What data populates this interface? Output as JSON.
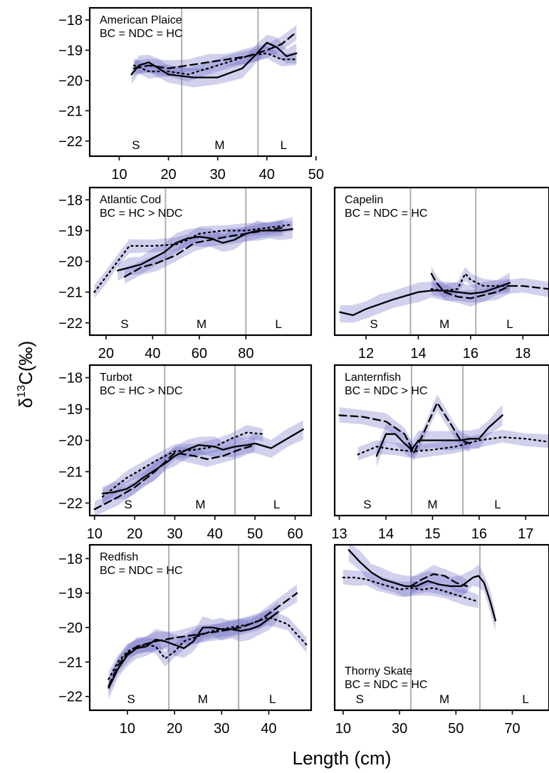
{
  "figure": {
    "ylabel": "δ13C(‰)",
    "ylabel_main": "δ",
    "ylabel_sup": "13",
    "ylabel_rest": "C(‰)",
    "xlabel": "Length (cm)"
  },
  "colors": {
    "band": "#5b5bbf",
    "line": "#000000",
    "divider": "#b0b0b0"
  },
  "chart_data": [
    {
      "type": "line",
      "title": "American Plaice",
      "subtitle": "BC = NDC = HC",
      "xlim": [
        4,
        49
      ],
      "ylim": [
        -22.5,
        -17.6
      ],
      "xticks": [
        10,
        20,
        30,
        40,
        50
      ],
      "yticks": [
        -18,
        -19,
        -20,
        -21,
        -22
      ],
      "dividers": [
        22.7,
        38.2
      ],
      "size_classes": [
        {
          "label": "S",
          "x": 13.4
        },
        {
          "label": "M",
          "x": 30.4
        },
        {
          "label": "L",
          "x": 43.4
        }
      ],
      "series": [
        {
          "style": "solid",
          "x": [
            12.5,
            14,
            16,
            18,
            20,
            25,
            30,
            35,
            38,
            40,
            42,
            44,
            46
          ],
          "y": [
            -19.8,
            -19.5,
            -19.4,
            -19.6,
            -19.8,
            -19.9,
            -19.9,
            -19.6,
            -19.1,
            -18.75,
            -18.9,
            -19.2,
            -19.1
          ]
        },
        {
          "style": "dashed",
          "x": [
            13,
            16,
            20,
            24,
            28,
            32,
            36,
            40,
            43,
            46
          ],
          "y": [
            -19.6,
            -19.5,
            -19.6,
            -19.5,
            -19.4,
            -19.3,
            -19.2,
            -19.0,
            -18.8,
            -18.4
          ]
        },
        {
          "style": "dotted",
          "x": [
            13,
            16,
            20,
            24,
            28,
            32,
            36,
            40,
            43,
            46
          ],
          "y": [
            -19.5,
            -19.7,
            -19.7,
            -19.8,
            -19.6,
            -19.4,
            -19.2,
            -19.1,
            -19.3,
            -19.3
          ]
        }
      ]
    },
    {
      "type": "line",
      "title": "Atlantic Cod",
      "subtitle": "BC = HC > NDC",
      "xlim": [
        13,
        108
      ],
      "ylim": [
        -22.4,
        -17.6
      ],
      "xticks": [
        20,
        40,
        60,
        80
      ],
      "yticks": [
        -18,
        -19,
        -20,
        -21,
        -22
      ],
      "dividers": [
        45.5,
        80
      ],
      "size_classes": [
        {
          "label": "S",
          "x": 28
        },
        {
          "label": "M",
          "x": 61
        },
        {
          "label": "L",
          "x": 94
        }
      ],
      "series": [
        {
          "style": "solid",
          "x": [
            25,
            30,
            35,
            40,
            45,
            50,
            55,
            60,
            65,
            70,
            75,
            80,
            85,
            90,
            95,
            100
          ],
          "y": [
            -20.3,
            -20.2,
            -20.1,
            -19.9,
            -19.7,
            -19.4,
            -19.25,
            -19.2,
            -19.25,
            -19.4,
            -19.3,
            -19.1,
            -19.0,
            -19.0,
            -19.0,
            -18.95
          ]
        },
        {
          "style": "dashed",
          "x": [
            28,
            35,
            42,
            50,
            58,
            65,
            72,
            80,
            88,
            96
          ],
          "y": [
            -20.5,
            -20.2,
            -20.05,
            -19.8,
            -19.4,
            -19.3,
            -19.2,
            -19.1,
            -19.0,
            -18.9
          ]
        },
        {
          "style": "dotted",
          "x": [
            15,
            20,
            25,
            30,
            40,
            50,
            55,
            60,
            70,
            80,
            90,
            100
          ],
          "y": [
            -21.0,
            -20.5,
            -20.0,
            -19.5,
            -19.5,
            -19.45,
            -19.3,
            -19.1,
            -19.0,
            -19.0,
            -18.9,
            -18.8
          ]
        }
      ]
    },
    {
      "type": "line",
      "title": "Capelin",
      "subtitle": "BC = NDC = HC",
      "xlim": [
        10.8,
        19
      ],
      "ylim": [
        -22.4,
        -17.6
      ],
      "xticks": [
        12,
        14,
        16,
        18
      ],
      "yticks": [],
      "dividers": [
        13.7,
        16.2
      ],
      "size_classes": [
        {
          "label": "S",
          "x": 12.3
        },
        {
          "label": "M",
          "x": 15.0
        },
        {
          "label": "L",
          "x": 17.5
        }
      ],
      "series": [
        {
          "style": "solid",
          "x": [
            11,
            11.5,
            12,
            12.5,
            13,
            14,
            14.5,
            15,
            15.5,
            16,
            16.5,
            17.0,
            17.5
          ],
          "y": [
            -21.65,
            -21.75,
            -21.55,
            -21.4,
            -21.25,
            -21.0,
            -20.95,
            -20.95,
            -21.0,
            -21.05,
            -21.0,
            -20.85,
            -20.7
          ]
        },
        {
          "style": "dashed",
          "x": [
            14.5,
            14.7,
            15,
            15.5,
            16,
            16.5,
            17,
            17.5,
            18,
            19
          ],
          "y": [
            -20.4,
            -20.7,
            -21.0,
            -21.15,
            -21.2,
            -21.1,
            -21.0,
            -20.8,
            -20.8,
            -20.9
          ]
        },
        {
          "style": "dotted",
          "x": [
            14.5,
            15,
            15.5,
            15.8,
            16,
            16.5,
            17,
            17.5
          ],
          "y": [
            -20.9,
            -20.95,
            -20.9,
            -20.4,
            -20.6,
            -20.8,
            -20.8,
            -20.8
          ]
        }
      ]
    },
    {
      "type": "line",
      "title": "Turbot",
      "subtitle": "BC = HC > NDC",
      "xlim": [
        8.8,
        64
      ],
      "ylim": [
        -22.4,
        -17.6
      ],
      "xticks": [
        10,
        20,
        30,
        40,
        50,
        60
      ],
      "yticks": [
        -18,
        -19,
        -20,
        -21,
        -22
      ],
      "dividers": [
        27.5,
        45
      ],
      "size_classes": [
        {
          "label": "S",
          "x": 18.4
        },
        {
          "label": "M",
          "x": 36.4
        },
        {
          "label": "L",
          "x": 55.4
        }
      ],
      "series": [
        {
          "style": "solid",
          "x": [
            12,
            15,
            18,
            20,
            22,
            25,
            28,
            30,
            33,
            36,
            40,
            42,
            45,
            48,
            50,
            54,
            58,
            62
          ],
          "y": [
            -21.7,
            -21.65,
            -21.55,
            -21.4,
            -21.2,
            -20.95,
            -20.7,
            -20.5,
            -20.3,
            -20.15,
            -20.2,
            -20.3,
            -20.2,
            -20.15,
            -20.1,
            -20.25,
            -19.95,
            -19.65
          ]
        },
        {
          "style": "dashed",
          "x": [
            10,
            13,
            16,
            20,
            25,
            30,
            35,
            38,
            42,
            46,
            50
          ],
          "y": [
            -22.2,
            -22.0,
            -21.8,
            -21.5,
            -21.0,
            -20.4,
            -20.5,
            -20.6,
            -20.5,
            -20.3,
            -20.15
          ]
        },
        {
          "style": "dotted",
          "x": [
            12,
            15,
            18,
            22,
            26,
            30,
            35,
            40,
            44,
            48,
            52
          ],
          "y": [
            -21.8,
            -21.5,
            -21.2,
            -20.9,
            -20.6,
            -20.35,
            -20.3,
            -20.2,
            -19.95,
            -19.75,
            -19.8
          ]
        }
      ]
    },
    {
      "type": "line",
      "title": "Lanternfish",
      "subtitle": "BC = NDC > HC",
      "xlim": [
        12.9,
        17.5
      ],
      "ylim": [
        -22.4,
        -17.6
      ],
      "xticks": [
        13,
        14,
        15,
        16,
        17
      ],
      "yticks": [],
      "dividers": [
        14.55,
        15.65
      ],
      "size_classes": [
        {
          "label": "S",
          "x": 13.6
        },
        {
          "label": "M",
          "x": 15.0
        },
        {
          "label": "L",
          "x": 16.4
        }
      ],
      "series": [
        {
          "style": "solid",
          "x": [
            13.8,
            14.0,
            14.2,
            14.4,
            14.55,
            14.7,
            15.0,
            15.3,
            15.6,
            15.8,
            16.0,
            16.2,
            16.5
          ],
          "y": [
            -20.5,
            -19.8,
            -19.8,
            -20.1,
            -20.3,
            -20.0,
            -20.0,
            -20.0,
            -20.0,
            -19.95,
            -19.95,
            -19.6,
            -19.2
          ]
        },
        {
          "style": "dashed",
          "x": [
            13.0,
            13.5,
            14.0,
            14.4,
            14.6,
            14.8,
            15.1,
            15.4,
            15.6,
            15.8
          ],
          "y": [
            -19.2,
            -19.25,
            -19.4,
            -19.8,
            -20.4,
            -19.8,
            -18.8,
            -19.5,
            -20.0,
            -20.1
          ]
        },
        {
          "style": "dotted",
          "x": [
            13.4,
            13.8,
            14.2,
            14.6,
            15.0,
            15.5,
            16.0,
            16.5,
            17.0,
            17.5
          ],
          "y": [
            -20.45,
            -20.2,
            -20.3,
            -20.35,
            -20.3,
            -20.2,
            -20.0,
            -19.9,
            -19.95,
            -20.05
          ]
        }
      ]
    },
    {
      "type": "line",
      "title": "Redfish",
      "subtitle": "BC = NDC = HC",
      "xlim": [
        2,
        49
      ],
      "ylim": [
        -22.4,
        -17.6
      ],
      "xticks": [
        10,
        20,
        30,
        40
      ],
      "yticks": [
        -18,
        -19,
        -20,
        -21,
        -22
      ],
      "dividers": [
        18.8,
        33.6
      ],
      "size_classes": [
        {
          "label": "S",
          "x": 10.8
        },
        {
          "label": "M",
          "x": 26.0
        },
        {
          "label": "L",
          "x": 40.8
        }
      ],
      "series": [
        {
          "style": "solid",
          "x": [
            6,
            8,
            10,
            12,
            14,
            16,
            18,
            20,
            22,
            24,
            26,
            28,
            30,
            32,
            34,
            36,
            38,
            40,
            42
          ],
          "y": [
            -21.75,
            -21.2,
            -20.8,
            -20.6,
            -20.55,
            -20.35,
            -20.4,
            -20.5,
            -20.6,
            -20.4,
            -20.0,
            -20.0,
            -20.05,
            -20.05,
            -20.1,
            -20.05,
            -19.95,
            -19.75,
            -19.55
          ]
        },
        {
          "style": "dashed",
          "x": [
            6,
            8,
            10,
            12,
            16,
            20,
            25,
            30,
            34,
            38,
            42,
            46
          ],
          "y": [
            -21.7,
            -21.1,
            -20.75,
            -20.55,
            -20.4,
            -20.3,
            -20.2,
            -20.1,
            -20.0,
            -19.8,
            -19.4,
            -19.0
          ]
        },
        {
          "style": "dotted",
          "x": [
            6,
            8,
            10,
            12,
            14,
            16,
            18,
            20,
            22,
            24,
            28,
            32,
            36,
            40,
            44,
            48
          ],
          "y": [
            -21.5,
            -21.0,
            -20.7,
            -20.55,
            -20.5,
            -20.55,
            -20.9,
            -20.7,
            -20.4,
            -20.3,
            -20.1,
            -20.0,
            -19.9,
            -19.7,
            -19.9,
            -20.5
          ]
        }
      ]
    },
    {
      "type": "line",
      "title": "Thorny Skate",
      "subtitle": "BC = NDC = HC",
      "xlim": [
        7,
        83
      ],
      "ylim": [
        -22.4,
        -17.6
      ],
      "xticks": [
        10,
        30,
        50,
        70
      ],
      "yticks": [],
      "dividers": [
        34,
        58.5
      ],
      "size_classes": [
        {
          "label": "S",
          "x": 15.9
        },
        {
          "label": "M",
          "x": 45.9
        },
        {
          "label": "L",
          "x": 74.7
        }
      ],
      "series": [
        {
          "style": "solid",
          "x": [
            12,
            16,
            20,
            24,
            28,
            32,
            36,
            40,
            44,
            48,
            52,
            56,
            58,
            60,
            62,
            64
          ],
          "y": [
            -17.75,
            -18.1,
            -18.4,
            -18.6,
            -18.7,
            -18.8,
            -18.8,
            -18.65,
            -18.75,
            -18.8,
            -18.8,
            -18.55,
            -18.5,
            -18.7,
            -19.2,
            -19.8
          ]
        },
        {
          "style": "dashed",
          "x": [
            34,
            38,
            42,
            46,
            50,
            54
          ],
          "y": [
            -18.8,
            -18.6,
            -18.45,
            -18.5,
            -18.7,
            -18.8
          ]
        },
        {
          "style": "dotted",
          "x": [
            10,
            14,
            18,
            22,
            26,
            30,
            34,
            38,
            42,
            46,
            50,
            54,
            58
          ],
          "y": [
            -18.55,
            -18.55,
            -18.6,
            -18.7,
            -18.8,
            -18.9,
            -18.85,
            -18.9,
            -18.85,
            -18.95,
            -19.05,
            -19.15,
            -19.25
          ]
        }
      ]
    }
  ]
}
